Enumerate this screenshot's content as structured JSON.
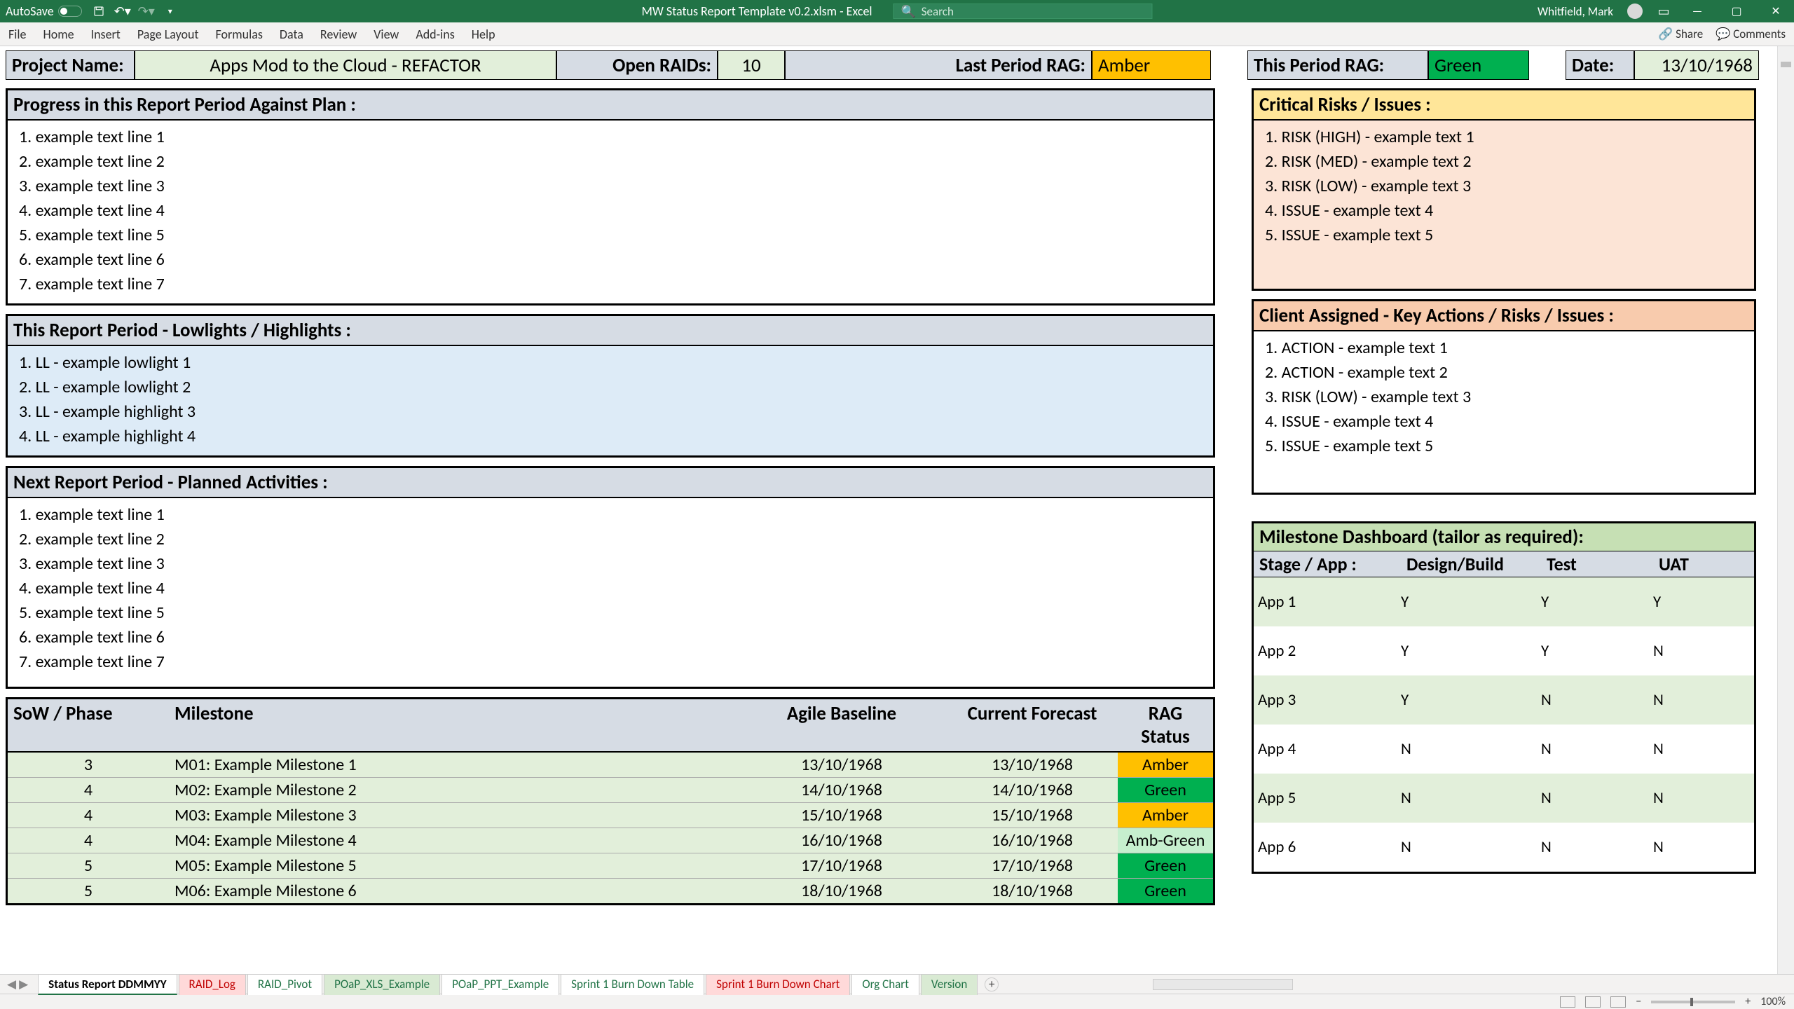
{
  "titlebar": {
    "autosave_label": "AutoSave",
    "doc": "MW Status Report Template v0.2.xlsm - Excel",
    "search_placeholder": "Search",
    "user": "Whitfield, Mark"
  },
  "ribbon": {
    "tabs": [
      "File",
      "Home",
      "Insert",
      "Page Layout",
      "Formulas",
      "Data",
      "Review",
      "View",
      "Add-ins",
      "Help"
    ],
    "share": "Share",
    "comments": "Comments"
  },
  "header": {
    "project_label": "Project Name:",
    "project_value": "Apps Mod to the Cloud - REFACTOR",
    "raids_label": "Open RAIDs:",
    "raids_value": "10",
    "last_rag_label": "Last Period RAG:",
    "last_rag_value": "Amber",
    "this_rag_label": "This Period RAG:",
    "this_rag_value": "Green",
    "date_label": "Date:",
    "date_value": "13/10/1968"
  },
  "progress": {
    "title": "Progress in this Report Period Against Plan :",
    "items": [
      "example text line 1",
      "example text line 2",
      "example text line 3",
      "example text line 4",
      "example text line 5",
      "example text line 6",
      "example text line 7"
    ]
  },
  "lowlights": {
    "title": "This Report Period - Lowlights / Highlights :",
    "items": [
      "LL - example lowlight 1",
      "LL - example lowlight 2",
      "LL - example highlight 3",
      "LL - example highlight 4"
    ]
  },
  "planned": {
    "title": "Next Report Period - Planned Activities :",
    "items": [
      "example text line 1",
      "example text line 2",
      "example text line 3",
      "example text line 4",
      "example text line 5",
      "example text line 6",
      "example text line 7"
    ]
  },
  "risks": {
    "title": "Critical Risks / Issues :",
    "items": [
      "RISK (HIGH) - example text 1",
      "RISK (MED) - example text 2",
      "RISK (LOW) - example text 3",
      "ISSUE - example text 4",
      "ISSUE - example text 5"
    ]
  },
  "client": {
    "title": "Client Assigned - Key Actions / Risks / Issues :",
    "items": [
      "ACTION - example text 1",
      "ACTION - example text 2",
      "RISK (LOW) - example text 3",
      "ISSUE - example text 4",
      "ISSUE - example text 5"
    ]
  },
  "milestones": {
    "headers": {
      "sow": "SoW / Phase",
      "ms": "Milestone",
      "ab": "Agile Baseline",
      "cf": "Current Forecast",
      "rag": "RAG Status"
    },
    "rows": [
      {
        "sow": "3",
        "ms": "M01: Example Milestone 1",
        "ab": "13/10/1968",
        "cf": "13/10/1968",
        "rag": "Amber",
        "rag_color": "#ffc000"
      },
      {
        "sow": "4",
        "ms": "M02: Example Milestone 2",
        "ab": "14/10/1968",
        "cf": "14/10/1968",
        "rag": "Green",
        "rag_color": "#00b050"
      },
      {
        "sow": "4",
        "ms": "M03: Example Milestone 3",
        "ab": "15/10/1968",
        "cf": "15/10/1968",
        "rag": "Amber",
        "rag_color": "#ffc000"
      },
      {
        "sow": "4",
        "ms": "M04: Example Milestone 4",
        "ab": "16/10/1968",
        "cf": "16/10/1968",
        "rag": "Amb-Green",
        "rag_color": "#c6efce"
      },
      {
        "sow": "5",
        "ms": "M05: Example Milestone 5",
        "ab": "17/10/1968",
        "cf": "17/10/1968",
        "rag": "Green",
        "rag_color": "#00b050"
      },
      {
        "sow": "5",
        "ms": "M06: Example Milestone 6",
        "ab": "18/10/1968",
        "cf": "18/10/1968",
        "rag": "Green",
        "rag_color": "#00b050"
      }
    ]
  },
  "dashboard": {
    "title": "Milestone Dashboard (tailor as required):",
    "cols": {
      "stage": "Stage / App :",
      "db": "Design/Build",
      "test": "Test",
      "uat": "UAT"
    },
    "rows": [
      {
        "app": "App 1",
        "db": "Y",
        "test": "Y",
        "uat": "Y"
      },
      {
        "app": "App 2",
        "db": "Y",
        "test": "Y",
        "uat": "N"
      },
      {
        "app": "App 3",
        "db": "Y",
        "test": "N",
        "uat": "N"
      },
      {
        "app": "App 4",
        "db": "N",
        "test": "N",
        "uat": "N"
      },
      {
        "app": "App 5",
        "db": "N",
        "test": "N",
        "uat": "N"
      },
      {
        "app": "App 6",
        "db": "N",
        "test": "N",
        "uat": "N"
      }
    ]
  },
  "sheets": {
    "tabs": [
      {
        "name": "Status Report DDMMYY",
        "active": true,
        "color": "black"
      },
      {
        "name": "RAID_Log",
        "color": "red"
      },
      {
        "name": "RAID_Pivot",
        "color": "black"
      },
      {
        "name": "POaP_XLS_Example",
        "color": "green"
      },
      {
        "name": "POaP_PPT_Example",
        "color": "black"
      },
      {
        "name": "Sprint 1 Burn Down Table",
        "color": "black"
      },
      {
        "name": "Sprint 1 Burn Down Chart",
        "color": "red"
      },
      {
        "name": "Org Chart",
        "color": "black"
      },
      {
        "name": "Version",
        "color": "green"
      }
    ]
  },
  "statusbar": {
    "zoom": "100%"
  }
}
